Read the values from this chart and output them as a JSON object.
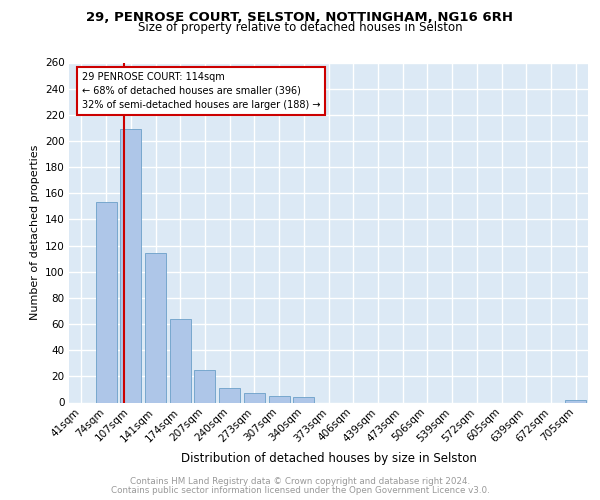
{
  "title1": "29, PENROSE COURT, SELSTON, NOTTINGHAM, NG16 6RH",
  "title2": "Size of property relative to detached houses in Selston",
  "xlabel": "Distribution of detached houses by size in Selston",
  "ylabel": "Number of detached properties",
  "categories": [
    "41sqm",
    "74sqm",
    "107sqm",
    "141sqm",
    "174sqm",
    "207sqm",
    "240sqm",
    "273sqm",
    "307sqm",
    "340sqm",
    "373sqm",
    "406sqm",
    "439sqm",
    "473sqm",
    "506sqm",
    "539sqm",
    "572sqm",
    "605sqm",
    "639sqm",
    "672sqm",
    "705sqm"
  ],
  "values": [
    0,
    153,
    209,
    114,
    64,
    25,
    11,
    7,
    5,
    4,
    0,
    0,
    0,
    0,
    0,
    0,
    0,
    0,
    0,
    0,
    2
  ],
  "bar_color": "#aec6e8",
  "bar_edge_color": "#6b9fc8",
  "annotation_text": "29 PENROSE COURT: 114sqm\n← 68% of detached houses are smaller (396)\n32% of semi-detached houses are larger (188) →",
  "annotation_box_color": "#ffffff",
  "annotation_box_edge_color": "#cc0000",
  "vline_color": "#cc0000",
  "ylim": [
    0,
    260
  ],
  "yticks": [
    0,
    20,
    40,
    60,
    80,
    100,
    120,
    140,
    160,
    180,
    200,
    220,
    240,
    260
  ],
  "footer_line1": "Contains HM Land Registry data © Crown copyright and database right 2024.",
  "footer_line2": "Contains public sector information licensed under the Open Government Licence v3.0.",
  "background_color": "#dce9f5",
  "grid_color": "#ffffff",
  "title1_fontsize": 9.5,
  "title2_fontsize": 8.5,
  "xlabel_fontsize": 8.5,
  "ylabel_fontsize": 8.0,
  "tick_fontsize": 7.5,
  "footer_fontsize": 6.3,
  "footer_color": "#999999"
}
